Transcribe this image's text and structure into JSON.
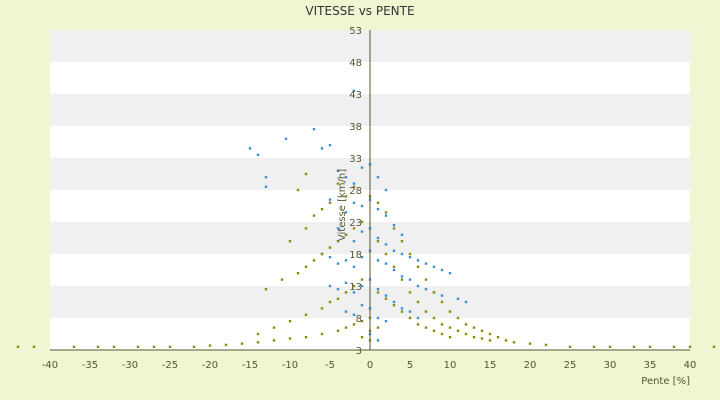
{
  "chart_data": {
    "type": "scatter",
    "title": "VITESSE vs PENTE",
    "xlabel": "Pente [%]",
    "ylabel": "Vitesse [km/h]",
    "xlim": [
      -40,
      40
    ],
    "ylim": [
      3,
      53
    ],
    "x_ticks": [
      "-40",
      "-35",
      "-30",
      "-25",
      "-20",
      "-15",
      "-10",
      "-5",
      "0",
      "5",
      "10",
      "15",
      "20",
      "25",
      "30",
      "35",
      "40"
    ],
    "y_ticks": [
      "3",
      "8",
      "13",
      "18",
      "23",
      "28",
      "33",
      "38",
      "43",
      "48",
      "53"
    ],
    "grid": "horizontal alternating bands",
    "legend": "none",
    "colors": {
      "background": "#f0f5d2",
      "plot_band_light": "#ffffff",
      "plot_band_dark": "#f0f0f0",
      "axis_line": "#555533",
      "series_1": "#3a8fd8",
      "series_2": "#8a8a10"
    },
    "series": [
      {
        "color": "#3a8fd8",
        "points": [
          [
            -15,
            34.5
          ],
          [
            -14,
            33.5
          ],
          [
            -13,
            30
          ],
          [
            -10.5,
            36
          ],
          [
            -7,
            37.5
          ],
          [
            -6,
            34.5
          ],
          [
            -5,
            35
          ],
          [
            -2,
            43.5
          ],
          [
            -13,
            28.5
          ],
          [
            -4,
            31
          ],
          [
            -3,
            30
          ],
          [
            -2,
            29
          ],
          [
            -1,
            31.5
          ],
          [
            0,
            32
          ],
          [
            1,
            30
          ],
          [
            2,
            28
          ],
          [
            -5,
            26.5
          ],
          [
            -3,
            24.5
          ],
          [
            -2,
            26
          ],
          [
            -1,
            25.5
          ],
          [
            0,
            26.5
          ],
          [
            1,
            25
          ],
          [
            2,
            24
          ],
          [
            3,
            22.5
          ],
          [
            4,
            21
          ],
          [
            -4,
            22
          ],
          [
            -3,
            21
          ],
          [
            -2,
            20
          ],
          [
            -1,
            21.5
          ],
          [
            0,
            22
          ],
          [
            1,
            20.5
          ],
          [
            2,
            19.5
          ],
          [
            3,
            18.5
          ],
          [
            4,
            18
          ],
          [
            5,
            17.5
          ],
          [
            6,
            17
          ],
          [
            7,
            16.5
          ],
          [
            8,
            16
          ],
          [
            9,
            15.5
          ],
          [
            10,
            15
          ],
          [
            -6,
            18
          ],
          [
            -5,
            17.5
          ],
          [
            -4,
            16.5
          ],
          [
            -3,
            17
          ],
          [
            -2,
            16
          ],
          [
            -1,
            17.5
          ],
          [
            0,
            18.5
          ],
          [
            1,
            17
          ],
          [
            2,
            16.5
          ],
          [
            3,
            15.5
          ],
          [
            4,
            14.5
          ],
          [
            5,
            14
          ],
          [
            6,
            13
          ],
          [
            7,
            12.5
          ],
          [
            8,
            12
          ],
          [
            9,
            11.5
          ],
          [
            11,
            11
          ],
          [
            12,
            10.5
          ],
          [
            -5,
            13
          ],
          [
            -4,
            12.5
          ],
          [
            -3,
            13.5
          ],
          [
            -2,
            12
          ],
          [
            -1,
            13
          ],
          [
            0,
            14
          ],
          [
            1,
            12.5
          ],
          [
            2,
            11.5
          ],
          [
            3,
            10.5
          ],
          [
            4,
            9.5
          ],
          [
            5,
            9
          ],
          [
            6,
            8
          ],
          [
            -3,
            9
          ],
          [
            -2,
            8.5
          ],
          [
            -1,
            10
          ],
          [
            0,
            9.5
          ],
          [
            1,
            8
          ],
          [
            2,
            7.5
          ],
          [
            0,
            5.5
          ],
          [
            1,
            4.5
          ]
        ]
      },
      {
        "color": "#8a8a10",
        "points": [
          [
            -44,
            3.5
          ],
          [
            -42,
            3.5
          ],
          [
            -37,
            3.5
          ],
          [
            -34,
            3.5
          ],
          [
            -32,
            3.5
          ],
          [
            -29,
            3.5
          ],
          [
            -27,
            3.5
          ],
          [
            -25,
            3.5
          ],
          [
            -22,
            3.5
          ],
          [
            -20,
            3.7
          ],
          [
            -18,
            3.8
          ],
          [
            -16,
            4
          ],
          [
            -14,
            4.2
          ],
          [
            -12,
            4.5
          ],
          [
            -10,
            4.8
          ],
          [
            -8,
            5
          ],
          [
            -6,
            5.5
          ],
          [
            -4,
            6
          ],
          [
            -3,
            6.5
          ],
          [
            -2,
            7
          ],
          [
            -1,
            7.5
          ],
          [
            -14,
            5.5
          ],
          [
            -12,
            6.5
          ],
          [
            -10,
            7.5
          ],
          [
            -8,
            8.5
          ],
          [
            -6,
            9.5
          ],
          [
            -5,
            10.5
          ],
          [
            -4,
            11
          ],
          [
            -3,
            12
          ],
          [
            -2,
            13
          ],
          [
            -1,
            14
          ],
          [
            -13,
            12.5
          ],
          [
            -11,
            14
          ],
          [
            -9,
            15
          ],
          [
            -8,
            16
          ],
          [
            -7,
            17
          ],
          [
            -6,
            18
          ],
          [
            -5,
            19
          ],
          [
            -4,
            20
          ],
          [
            -3,
            21
          ],
          [
            -2,
            22
          ],
          [
            -1,
            23
          ],
          [
            -10,
            20
          ],
          [
            -8,
            22
          ],
          [
            -7,
            24
          ],
          [
            -6,
            25
          ],
          [
            -5,
            26
          ],
          [
            -3,
            27
          ],
          [
            -9,
            28
          ],
          [
            -8,
            30.5
          ],
          [
            -4,
            29
          ],
          [
            -2,
            28.5
          ],
          [
            0,
            27
          ],
          [
            1,
            26
          ],
          [
            2,
            24.5
          ],
          [
            3,
            22
          ],
          [
            4,
            20
          ],
          [
            5,
            18
          ],
          [
            6,
            16
          ],
          [
            7,
            14
          ],
          [
            8,
            12
          ],
          [
            9,
            10.5
          ],
          [
            10,
            9
          ],
          [
            11,
            8
          ],
          [
            12,
            7
          ],
          [
            13,
            6.5
          ],
          [
            14,
            6
          ],
          [
            15,
            5.5
          ],
          [
            16,
            5
          ],
          [
            17,
            4.5
          ],
          [
            18,
            4.2
          ],
          [
            20,
            4
          ],
          [
            22,
            3.8
          ],
          [
            25,
            3.5
          ],
          [
            28,
            3.5
          ],
          [
            30,
            3.5
          ],
          [
            33,
            3.5
          ],
          [
            35,
            3.5
          ],
          [
            38,
            3.5
          ],
          [
            40,
            3.5
          ],
          [
            43,
            3.5
          ],
          [
            1,
            20
          ],
          [
            2,
            18
          ],
          [
            3,
            16
          ],
          [
            4,
            14
          ],
          [
            5,
            12
          ],
          [
            6,
            10.5
          ],
          [
            7,
            9
          ],
          [
            8,
            8
          ],
          [
            9,
            7
          ],
          [
            10,
            6.5
          ],
          [
            11,
            6
          ],
          [
            12,
            5.5
          ],
          [
            13,
            5
          ],
          [
            14,
            4.8
          ],
          [
            15,
            4.5
          ],
          [
            1,
            12
          ],
          [
            2,
            11
          ],
          [
            3,
            10
          ],
          [
            4,
            9
          ],
          [
            5,
            8
          ],
          [
            6,
            7
          ],
          [
            7,
            6.5
          ],
          [
            8,
            6
          ],
          [
            9,
            5.5
          ],
          [
            10,
            5
          ],
          [
            0,
            8
          ],
          [
            0,
            6
          ],
          [
            0,
            4.5
          ],
          [
            -1,
            5
          ],
          [
            1,
            6.5
          ]
        ]
      }
    ]
  }
}
